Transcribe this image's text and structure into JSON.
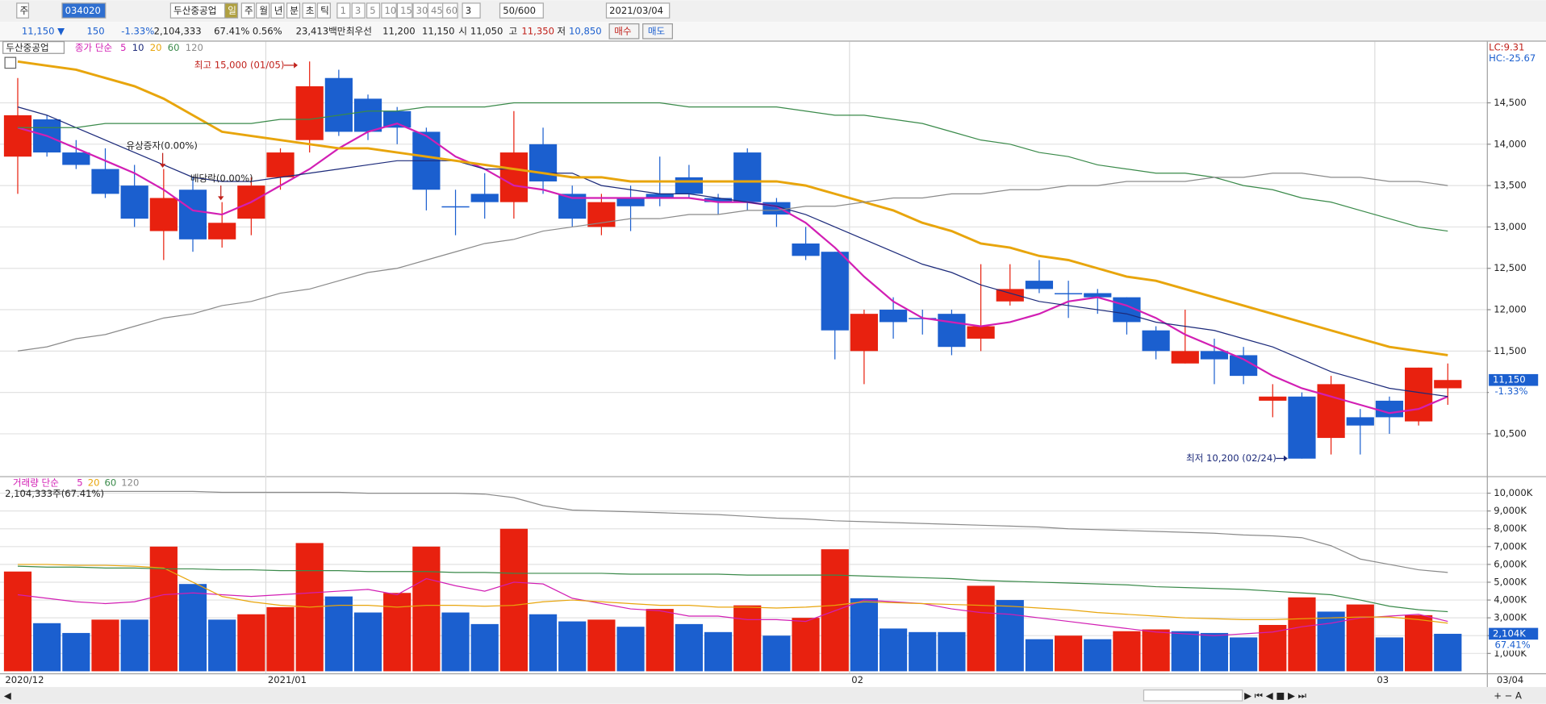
{
  "toolbar": {
    "row1": [
      "주",
      "034020",
      "두산중공업",
      "일",
      "주",
      "월",
      "년",
      "분",
      "초",
      "틱",
      "1",
      "3",
      "5",
      "10",
      "15",
      "30",
      "45",
      "60",
      "3",
      "50/600",
      "2021/03/04"
    ],
    "row2": [
      "11,150 ▼",
      "150",
      "-1.33%",
      "2,104,333",
      "67.41%",
      "0.56%",
      "23,413백만",
      "최우선",
      "11,200",
      "11,150",
      "시",
      "11,050",
      "고",
      "11,350",
      "저",
      "10,850",
      "매수",
      "매도"
    ]
  },
  "chart_data": [
    {
      "type": "candlestick",
      "title": "두산중공업",
      "legend_title": "종가 단순",
      "categories": [
        "2020/12",
        null,
        null,
        null,
        null,
        null,
        null,
        null,
        null,
        "2021/01",
        null,
        null,
        null,
        null,
        null,
        null,
        null,
        null,
        null,
        null,
        null,
        null,
        null,
        null,
        null,
        null,
        null,
        null,
        null,
        "02",
        null,
        null,
        null,
        null,
        null,
        null,
        null,
        null,
        null,
        null,
        null,
        null,
        null,
        null,
        null,
        null,
        null,
        "03",
        null,
        null
      ],
      "open": [
        13850,
        14300,
        13900,
        13700,
        13500,
        12950,
        13450,
        12850,
        13100,
        13600,
        14050,
        14800,
        14550,
        14400,
        14150,
        13250,
        13400,
        13300,
        14000,
        13400,
        13000,
        13350,
        13400,
        13600,
        13350,
        13900,
        13300,
        12800,
        12700,
        11500,
        12000,
        11900,
        11950,
        11650,
        12100,
        12350,
        12200,
        12200,
        12150,
        11750,
        11350,
        11500,
        11450,
        10900,
        10950,
        10450,
        10700,
        10900,
        10650,
        11050
      ],
      "high": [
        14800,
        14350,
        14050,
        13950,
        13750,
        13700,
        13600,
        13300,
        13600,
        13950,
        15000,
        14900,
        14600,
        14450,
        14200,
        13450,
        13650,
        14400,
        14200,
        13500,
        13400,
        13500,
        13850,
        13750,
        13400,
        13950,
        13350,
        13000,
        12700,
        12000,
        12150,
        12000,
        12000,
        12550,
        12550,
        12600,
        12350,
        12250,
        12150,
        11800,
        12000,
        11650,
        11550,
        11100,
        11000,
        11200,
        10800,
        10950,
        11300,
        11350
      ],
      "low": [
        13400,
        13850,
        13700,
        13350,
        13000,
        12600,
        12700,
        12750,
        12900,
        13450,
        13900,
        14100,
        14050,
        14000,
        13200,
        12900,
        13100,
        13100,
        13400,
        13000,
        12900,
        12950,
        13250,
        13350,
        13150,
        13200,
        13000,
        12600,
        11400,
        11100,
        11650,
        11700,
        11450,
        11500,
        12050,
        12200,
        11900,
        11950,
        11700,
        11400,
        11350,
        11100,
        11100,
        10700,
        10200,
        10250,
        10250,
        10500,
        10600,
        10850
      ],
      "close": [
        14350,
        13900,
        13750,
        13400,
        13100,
        13350,
        12850,
        13050,
        13500,
        13900,
        14700,
        14150,
        14150,
        14200,
        13450,
        13250,
        13300,
        13900,
        13550,
        13100,
        13300,
        13250,
        13350,
        13400,
        13300,
        13300,
        13150,
        12650,
        11750,
        11950,
        11850,
        11900,
        11550,
        11800,
        12250,
        12250,
        12200,
        12150,
        11850,
        11500,
        11500,
        11400,
        11200,
        10950,
        10200,
        11100,
        10600,
        10700,
        11300,
        11150
      ],
      "up_color": "#e8210f",
      "down_color": "#1b5fcf",
      "ylim": [
        10000,
        15240
      ],
      "yticks": [
        {
          "value": 10500,
          "label": "10,500"
        },
        {
          "value": 11000,
          "label": "11,000"
        },
        {
          "value": 11500,
          "label": "11,500"
        },
        {
          "value": 12000,
          "label": "12,000"
        },
        {
          "value": 12500,
          "label": "12,500"
        },
        {
          "value": 13000,
          "label": "13,000"
        },
        {
          "value": 13500,
          "label": "13,500"
        },
        {
          "value": 14000,
          "label": "14,000"
        },
        {
          "value": 14500,
          "label": "14,500"
        }
      ],
      "grid": true,
      "series": [
        {
          "name": "5",
          "color": "#d21fb4",
          "values": [
            14200,
            14100,
            13950,
            13800,
            13650,
            13450,
            13200,
            13150,
            13300,
            13500,
            13700,
            13950,
            14150,
            14250,
            14100,
            13850,
            13700,
            13500,
            13450,
            13350,
            13350,
            13350,
            13350,
            13350,
            13300,
            13300,
            13250,
            13050,
            12750,
            12400,
            12100,
            11900,
            11850,
            11800,
            11850,
            11950,
            12100,
            12150,
            12050,
            11900,
            11700,
            11550,
            11400,
            11200,
            11050,
            10950,
            10850,
            10750,
            10800,
            10950
          ]
        },
        {
          "name": "10",
          "color": "#1c2a7a",
          "values": [
            14450,
            14350,
            14200,
            14050,
            13900,
            13750,
            13600,
            13550,
            13550,
            13600,
            13650,
            13700,
            13750,
            13800,
            13800,
            13800,
            13700,
            13700,
            13650,
            13650,
            13500,
            13450,
            13400,
            13400,
            13350,
            13300,
            13250,
            13150,
            13000,
            12850,
            12700,
            12550,
            12450,
            12300,
            12200,
            12100,
            12050,
            12000,
            11950,
            11850,
            11800,
            11750,
            11650,
            11550,
            11400,
            11250,
            11150,
            11050,
            11000,
            10950
          ]
        },
        {
          "name": "20",
          "color": "#e8a50c",
          "values": [
            15000,
            14950,
            14900,
            14800,
            14700,
            14550,
            14350,
            14150,
            14100,
            14050,
            14000,
            13950,
            13950,
            13900,
            13850,
            13800,
            13750,
            13700,
            13650,
            13600,
            13600,
            13550,
            13550,
            13550,
            13550,
            13550,
            13550,
            13500,
            13400,
            13300,
            13200,
            13050,
            12950,
            12800,
            12750,
            12650,
            12600,
            12500,
            12400,
            12350,
            12250,
            12150,
            12050,
            11950,
            11850,
            11750,
            11650,
            11550,
            11500,
            11450
          ]
        },
        {
          "name": "60",
          "color": "#3a8a4a",
          "values": [
            14200,
            14200,
            14200,
            14250,
            14250,
            14250,
            14250,
            14250,
            14250,
            14300,
            14300,
            14350,
            14400,
            14400,
            14450,
            14450,
            14450,
            14500,
            14500,
            14500,
            14500,
            14500,
            14500,
            14450,
            14450,
            14450,
            14450,
            14400,
            14350,
            14350,
            14300,
            14250,
            14150,
            14050,
            14000,
            13900,
            13850,
            13750,
            13700,
            13650,
            13650,
            13600,
            13500,
            13450,
            13350,
            13300,
            13200,
            13100,
            13000,
            12950
          ]
        },
        {
          "name": "120",
          "color": "#8a8a8a",
          "values": [
            11500,
            11550,
            11650,
            11700,
            11800,
            11900,
            11950,
            12050,
            12100,
            12200,
            12250,
            12350,
            12450,
            12500,
            12600,
            12700,
            12800,
            12850,
            12950,
            13000,
            13050,
            13100,
            13100,
            13150,
            13150,
            13200,
            13200,
            13250,
            13250,
            13300,
            13350,
            13350,
            13400,
            13400,
            13450,
            13450,
            13500,
            13500,
            13550,
            13550,
            13550,
            13600,
            13600,
            13650,
            13650,
            13600,
            13600,
            13550,
            13550,
            13500
          ]
        }
      ],
      "annotations": [
        "최고 15,000 (01/05)",
        "최저 10,200 (02/24)",
        "유상증자(0.00%)",
        "배당락(0.00%)"
      ],
      "last_label": "11,150",
      "change_label": "-1.33%",
      "lc_label": "LC:9.31",
      "hc_label": "HC:-25.67",
      "end_label": "03/04"
    },
    {
      "type": "bar",
      "title": "거래량 단순",
      "subtitle": "2,104,333주(67.41%)",
      "values": [
        5600,
        2700,
        2150,
        2900,
        2900,
        7000,
        4900,
        2900,
        3200,
        3600,
        7200,
        4200,
        3300,
        4400,
        7000,
        3300,
        2650,
        8000,
        3200,
        2800,
        2900,
        2500,
        3500,
        2650,
        2200,
        3700,
        2000,
        3000,
        6850,
        4100,
        2400,
        2200,
        2200,
        4800,
        4000,
        1800,
        2000,
        1800,
        2250,
        2350,
        2250,
        2150,
        1900,
        2600,
        4150,
        3350,
        3750,
        1900,
        3150,
        2104
      ],
      "colors": [
        "#e8210f",
        "#1b5fcf",
        "#1b5fcf",
        "#e8210f",
        "#1b5fcf",
        "#e8210f",
        "#1b5fcf",
        "#1b5fcf",
        "#e8210f",
        "#e8210f",
        "#e8210f",
        "#1b5fcf",
        "#1b5fcf",
        "#e8210f",
        "#e8210f",
        "#1b5fcf",
        "#1b5fcf",
        "#e8210f",
        "#1b5fcf",
        "#1b5fcf",
        "#e8210f",
        "#1b5fcf",
        "#e8210f",
        "#1b5fcf",
        "#1b5fcf",
        "#e8210f",
        "#1b5fcf",
        "#e8210f",
        "#e8210f",
        "#1b5fcf",
        "#1b5fcf",
        "#1b5fcf",
        "#1b5fcf",
        "#e8210f",
        "#1b5fcf",
        "#1b5fcf",
        "#e8210f",
        "#1b5fcf",
        "#e8210f",
        "#e8210f",
        "#1b5fcf",
        "#1b5fcf",
        "#1b5fcf",
        "#e8210f",
        "#e8210f",
        "#1b5fcf",
        "#e8210f",
        "#1b5fcf",
        "#e8210f",
        "#1b5fcf"
      ],
      "value_labels": [
        null,
        null,
        null,
        null,
        null,
        null,
        null,
        null,
        null,
        null,
        null,
        null,
        null,
        null,
        null,
        null,
        null,
        null,
        null,
        null,
        null,
        null,
        null,
        null,
        null,
        null,
        null,
        null,
        null,
        null,
        null,
        null,
        null,
        null,
        null,
        null,
        null,
        null,
        null,
        null,
        null,
        null,
        null,
        null,
        null,
        null,
        null,
        null,
        null,
        "2,104K"
      ],
      "ratio_label": "67.41%",
      "ylim": [
        0,
        10900
      ],
      "yticks": [
        {
          "value": 1000,
          "label": "1,000K"
        },
        {
          "value": 2000,
          "label": "2,000K"
        },
        {
          "value": 3000,
          "label": "3,000K"
        },
        {
          "value": 4000,
          "label": "4,000K"
        },
        {
          "value": 5000,
          "label": "5,000K"
        },
        {
          "value": 6000,
          "label": "6,000K"
        },
        {
          "value": 7000,
          "label": "7,000K"
        },
        {
          "value": 8000,
          "label": "8,000K"
        },
        {
          "value": 9000,
          "label": "9,000K"
        },
        {
          "value": 10000,
          "label": "10,000K"
        }
      ],
      "grid": true,
      "series": [
        {
          "name": "5",
          "color": "#d21fb4",
          "values": [
            4300,
            4100,
            3900,
            3800,
            3900,
            4300,
            4400,
            4300,
            4200,
            4300,
            4400,
            4500,
            4600,
            4300,
            5200,
            4800,
            4500,
            5000,
            4900,
            4100,
            3800,
            3500,
            3400,
            3100,
            3100,
            2900,
            2900,
            2800,
            3400,
            4000,
            3900,
            3800,
            3500,
            3300,
            3200,
            3000,
            2800,
            2600,
            2400,
            2200,
            2100,
            2000,
            2100,
            2200,
            2500,
            2700,
            3000,
            3100,
            3200,
            2800
          ]
        },
        {
          "name": "20",
          "color": "#e8a50c",
          "values": [
            6000,
            6000,
            5950,
            5950,
            5900,
            5800,
            5000,
            4200,
            3900,
            3700,
            3600,
            3700,
            3700,
            3600,
            3700,
            3700,
            3650,
            3700,
            3900,
            4000,
            3900,
            3800,
            3700,
            3700,
            3600,
            3600,
            3550,
            3600,
            3700,
            3900,
            3850,
            3800,
            3750,
            3700,
            3650,
            3550,
            3450,
            3300,
            3200,
            3100,
            3000,
            2950,
            2900,
            2900,
            2950,
            3000,
            3050,
            3050,
            2900,
            2700
          ]
        },
        {
          "name": "60",
          "color": "#3a8a4a",
          "values": [
            5900,
            5850,
            5850,
            5800,
            5800,
            5750,
            5750,
            5700,
            5700,
            5650,
            5650,
            5650,
            5600,
            5600,
            5600,
            5550,
            5550,
            5500,
            5500,
            5500,
            5500,
            5450,
            5450,
            5450,
            5450,
            5400,
            5400,
            5400,
            5400,
            5350,
            5300,
            5250,
            5200,
            5100,
            5050,
            5000,
            4950,
            4900,
            4850,
            4750,
            4700,
            4650,
            4600,
            4500,
            4400,
            4300,
            4000,
            3650,
            3450,
            3350
          ]
        },
        {
          "name": "120",
          "color": "#8a8a8a",
          "values": [
            10100,
            10100,
            10100,
            10100,
            10100,
            10100,
            10100,
            10050,
            10050,
            10050,
            10050,
            10050,
            10000,
            10000,
            10000,
            10000,
            9950,
            9750,
            9300,
            9050,
            9000,
            8950,
            8900,
            8850,
            8800,
            8700,
            8600,
            8550,
            8450,
            8400,
            8350,
            8300,
            8250,
            8200,
            8150,
            8100,
            8000,
            7950,
            7900,
            7850,
            7800,
            7750,
            7650,
            7600,
            7500,
            7050,
            6300,
            6000,
            5700,
            5550
          ]
        }
      ]
    }
  ]
}
